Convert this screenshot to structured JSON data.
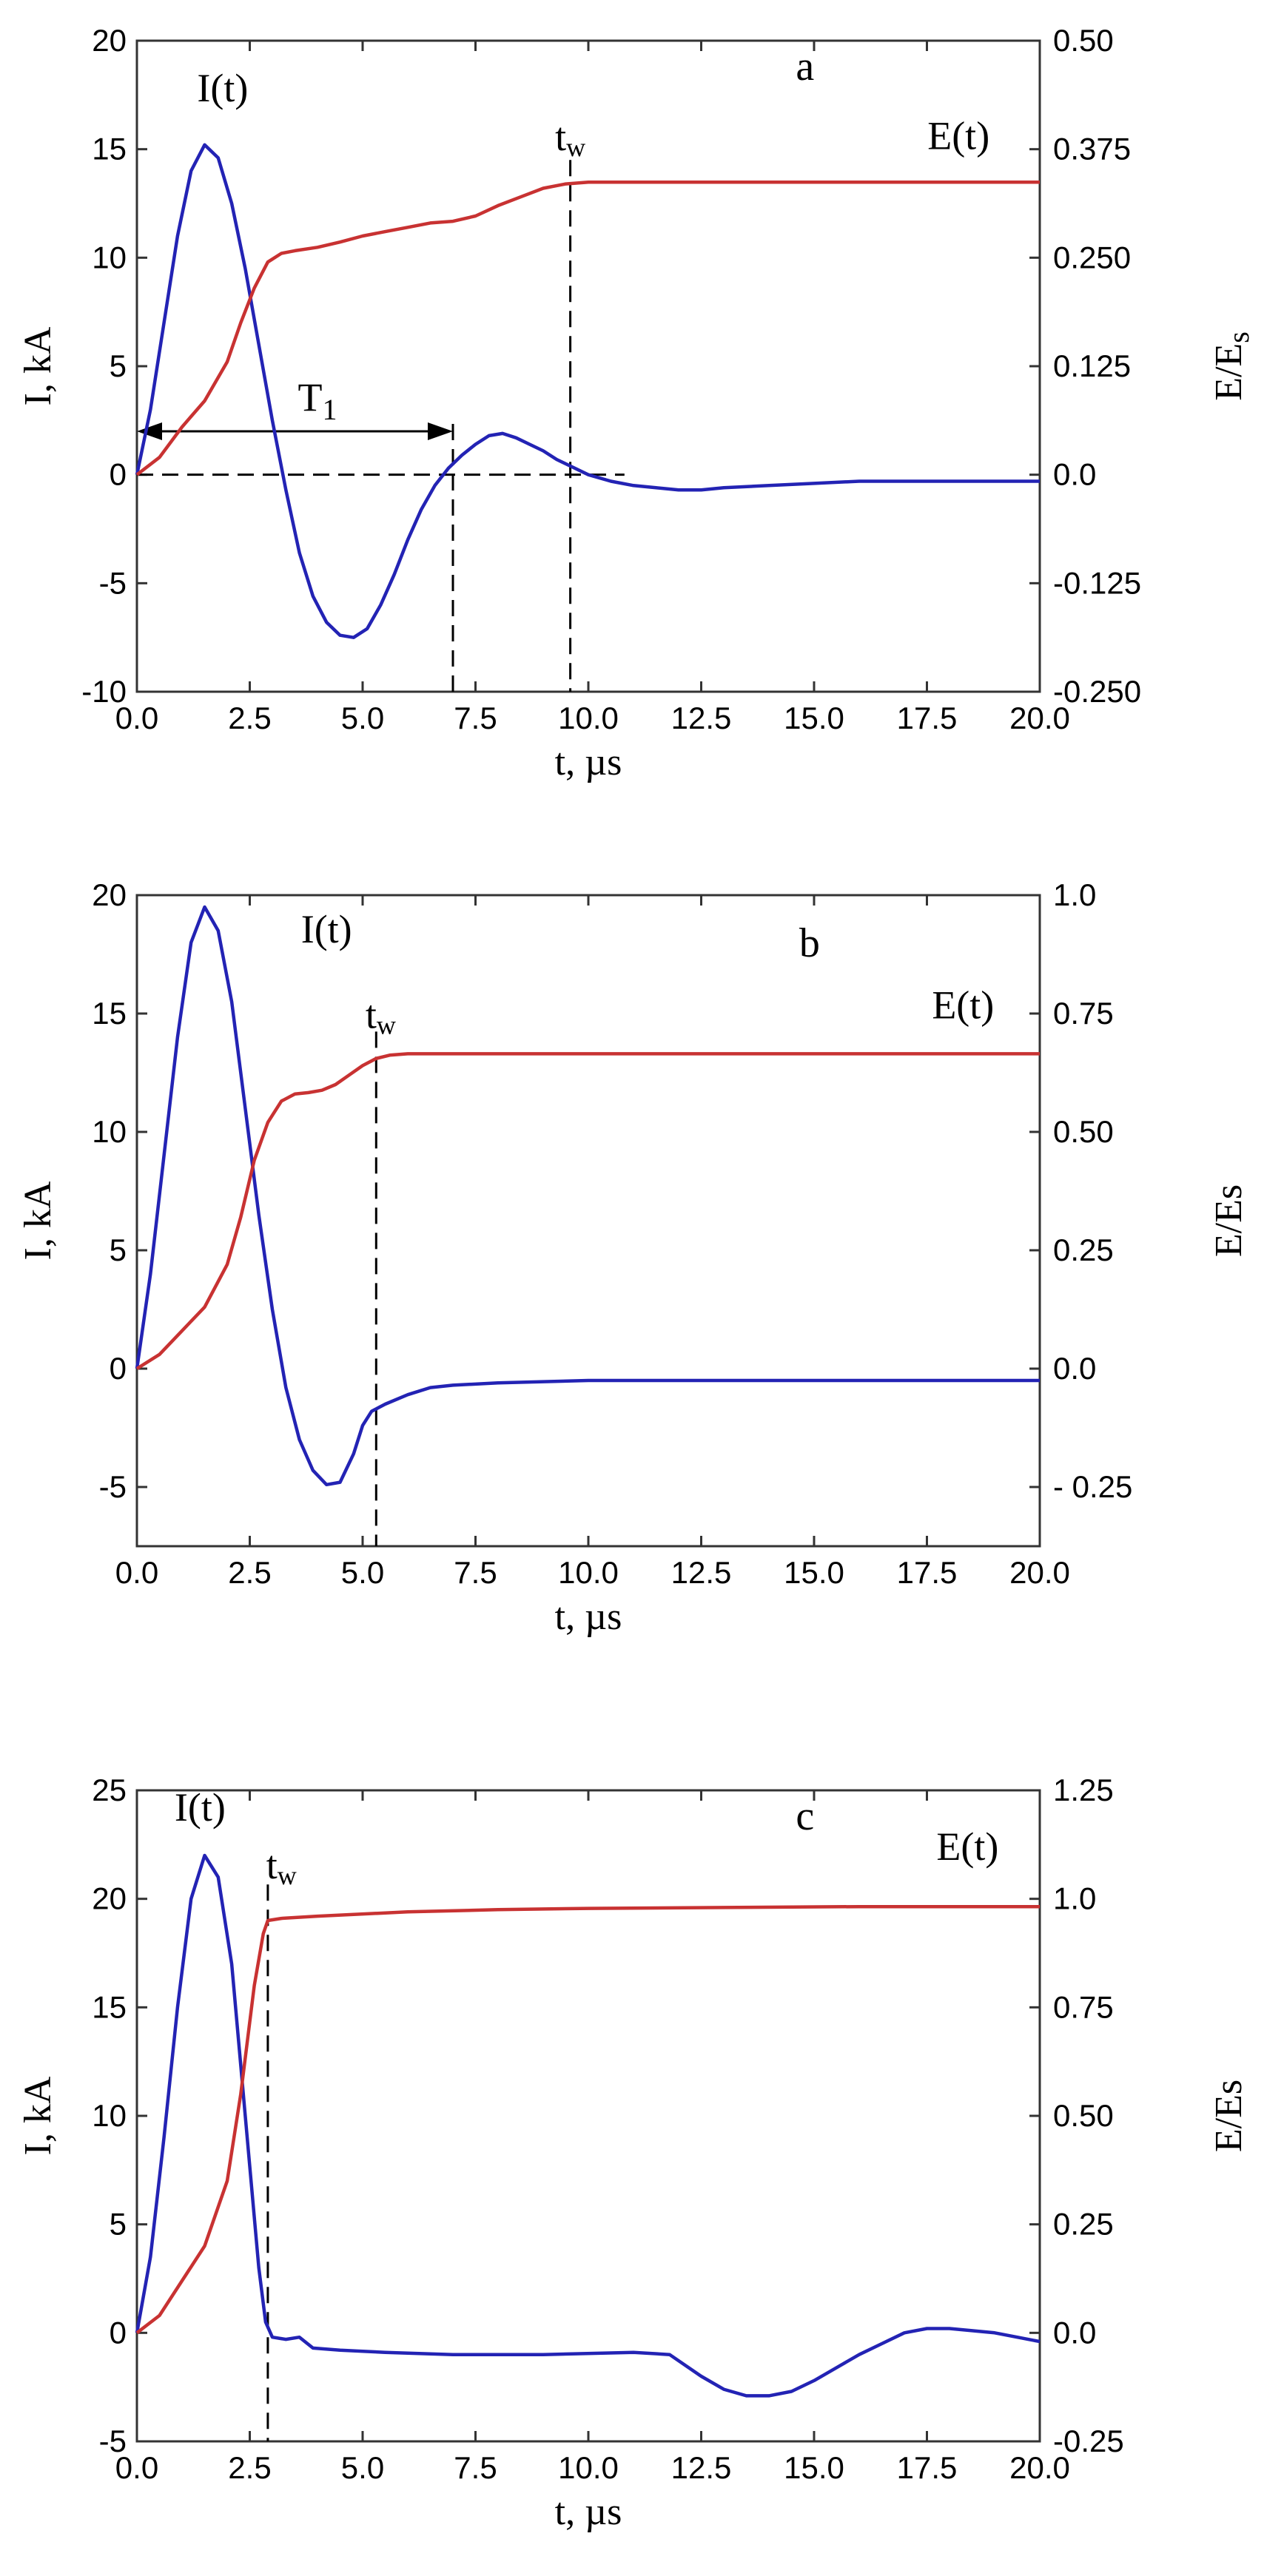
{
  "chart_data": [
    {
      "panel": "a",
      "type": "line",
      "xlabel": "t, µs",
      "ylabel": "I, kA",
      "ylabel_right": "E/E",
      "ylabel_right_sub": "s",
      "xlim": [
        0,
        20
      ],
      "ylim": [
        -10,
        20
      ],
      "ylim_right": [
        -0.25,
        0.5
      ],
      "x_ticks": [
        "0.0",
        "2.5",
        "5.0",
        "7.5",
        "10.0",
        "12.5",
        "15.0",
        "17.5",
        "20.0"
      ],
      "y_ticks": [
        "-10",
        "-5",
        "0",
        "5",
        "10",
        "15",
        "20"
      ],
      "y_ticks_right": [
        "-0.250",
        "-0.125",
        "0.0",
        "0.125",
        "0.250",
        "0.375",
        "0.50"
      ],
      "series": [
        {
          "name": "I(t)",
          "axis": "left",
          "color": "#2323b4",
          "x": [
            0,
            0.3,
            0.6,
            0.9,
            1.2,
            1.5,
            1.8,
            2.1,
            2.4,
            2.7,
            3.0,
            3.3,
            3.6,
            3.9,
            4.2,
            4.5,
            4.8,
            5.1,
            5.4,
            5.7,
            6.0,
            6.3,
            6.6,
            6.9,
            7.2,
            7.5,
            7.8,
            8.1,
            8.4,
            8.7,
            9.0,
            9.3,
            9.6,
            10.0,
            10.5,
            11.0,
            11.5,
            12.0,
            12.5,
            13.0,
            14.0,
            15.0,
            16.0,
            17.0,
            18.0,
            19.0,
            20.0
          ],
          "values": [
            0,
            3,
            7,
            11,
            14,
            15.2,
            14.6,
            12.5,
            9.5,
            6,
            2.5,
            -0.7,
            -3.6,
            -5.6,
            -6.8,
            -7.4,
            -7.5,
            -7.1,
            -6,
            -4.6,
            -3,
            -1.6,
            -0.5,
            0.3,
            0.9,
            1.4,
            1.8,
            1.9,
            1.7,
            1.4,
            1.1,
            0.7,
            0.4,
            0,
            -0.3,
            -0.5,
            -0.6,
            -0.7,
            -0.7,
            -0.6,
            -0.5,
            -0.4,
            -0.3,
            -0.3,
            -0.3,
            -0.3,
            -0.3
          ]
        },
        {
          "name": "E(t)",
          "axis": "right",
          "color": "#c83232",
          "x": [
            0,
            0.5,
            1.0,
            1.5,
            2.0,
            2.3,
            2.6,
            2.9,
            3.2,
            3.5,
            4.0,
            4.5,
            5.0,
            5.5,
            6.0,
            6.5,
            7.0,
            7.5,
            8.0,
            8.5,
            9.0,
            9.5,
            10.0,
            12.0,
            15.0,
            18.0,
            20.0
          ],
          "values": [
            0,
            0.02,
            0.055,
            0.085,
            0.13,
            0.175,
            0.215,
            0.245,
            0.255,
            0.258,
            0.262,
            0.268,
            0.275,
            0.28,
            0.285,
            0.29,
            0.292,
            0.298,
            0.31,
            0.32,
            0.33,
            0.335,
            0.337,
            0.337,
            0.337,
            0.337,
            0.337
          ]
        }
      ],
      "annotations": {
        "series_label_I": "I(t)",
        "series_label_E": "E(t)",
        "tw_label": "t",
        "tw_sub": "W",
        "T1_label": "T",
        "T1_sub": "1",
        "panel_tag": "a"
      },
      "markers": {
        "tw": 9.6,
        "T1_start": 0,
        "T1_end": 7.0,
        "zero_dash_end": 10.8
      }
    },
    {
      "panel": "b",
      "type": "line",
      "xlabel": "t, µs",
      "ylabel": "I, kA",
      "ylabel_right": "E/Es",
      "xlim": [
        0,
        20
      ],
      "ylim": [
        -7.5,
        20
      ],
      "ylim_right": [
        -0.375,
        1.0
      ],
      "x_ticks": [
        "0.0",
        "2.5",
        "5.0",
        "7.5",
        "10.0",
        "12.5",
        "15.0",
        "17.5",
        "20.0"
      ],
      "y_ticks": [
        "-5",
        "0",
        "5",
        "10",
        "15",
        "20"
      ],
      "y_ticks_right": [
        "- 0.25",
        "0.0",
        "0.25",
        "0.50",
        "0.75",
        "1.0"
      ],
      "series": [
        {
          "name": "I(t)",
          "axis": "left",
          "color": "#2323b4",
          "x": [
            0,
            0.3,
            0.6,
            0.9,
            1.2,
            1.5,
            1.8,
            2.1,
            2.4,
            2.7,
            3.0,
            3.3,
            3.6,
            3.9,
            4.2,
            4.5,
            4.8,
            5.0,
            5.2,
            5.5,
            6.0,
            6.5,
            7.0,
            8.0,
            10.0,
            12.0,
            15.0,
            18.0,
            20.0
          ],
          "values": [
            0,
            4,
            9,
            14,
            18,
            19.5,
            18.5,
            15.5,
            11,
            6.5,
            2.5,
            -0.8,
            -3,
            -4.3,
            -4.9,
            -4.8,
            -3.6,
            -2.4,
            -1.8,
            -1.5,
            -1.1,
            -0.8,
            -0.7,
            -0.6,
            -0.5,
            -0.5,
            -0.5,
            -0.5,
            -0.5
          ]
        },
        {
          "name": "E(t)",
          "axis": "right",
          "color": "#c83232",
          "x": [
            0,
            0.5,
            1.0,
            1.5,
            2.0,
            2.3,
            2.6,
            2.9,
            3.2,
            3.5,
            3.8,
            4.1,
            4.4,
            4.7,
            5.0,
            5.3,
            5.6,
            6.0,
            7.0,
            10.0,
            15.0,
            20.0
          ],
          "values": [
            0,
            0.03,
            0.08,
            0.13,
            0.22,
            0.32,
            0.44,
            0.52,
            0.565,
            0.58,
            0.583,
            0.588,
            0.6,
            0.62,
            0.64,
            0.655,
            0.662,
            0.665,
            0.665,
            0.665,
            0.665,
            0.665
          ]
        }
      ],
      "annotations": {
        "series_label_I": "I(t)",
        "series_label_E": "E(t)",
        "tw_label": "t",
        "tw_sub": "W",
        "panel_tag": "b"
      },
      "markers": {
        "tw": 5.3
      }
    },
    {
      "panel": "c",
      "type": "line",
      "xlabel": "t, µs",
      "ylabel": "I, kA",
      "ylabel_right": "E/Es",
      "xlim": [
        0,
        20
      ],
      "ylim": [
        -5,
        25
      ],
      "ylim_right": [
        -0.25,
        1.25
      ],
      "x_ticks": [
        "0.0",
        "2.5",
        "5.0",
        "7.5",
        "10.0",
        "12.5",
        "15.0",
        "17.5",
        "20.0"
      ],
      "y_ticks": [
        "-5",
        "0",
        "5",
        "10",
        "15",
        "20",
        "25"
      ],
      "y_ticks_right": [
        "-0.25",
        "0.0",
        "0.25",
        "0.50",
        "0.75",
        "1.0",
        "1.25"
      ],
      "series": [
        {
          "name": "I(t)",
          "axis": "left",
          "color": "#2323b4",
          "x": [
            0,
            0.3,
            0.6,
            0.9,
            1.2,
            1.5,
            1.8,
            2.1,
            2.4,
            2.7,
            2.85,
            3.0,
            3.3,
            3.6,
            3.9,
            4.5,
            5.5,
            7.0,
            9.0,
            11.0,
            11.8,
            12.5,
            13.0,
            13.5,
            14.0,
            14.5,
            15.0,
            15.5,
            16.0,
            16.5,
            17.0,
            17.5,
            18.0,
            18.5,
            19.0,
            19.5,
            20.0
          ],
          "values": [
            0,
            3.5,
            9,
            15,
            20,
            22,
            21,
            17,
            10,
            3,
            0.5,
            -0.2,
            -0.3,
            -0.2,
            -0.7,
            -0.8,
            -0.9,
            -1.0,
            -1.0,
            -0.9,
            -1.0,
            -2.0,
            -2.6,
            -2.9,
            -2.9,
            -2.7,
            -2.2,
            -1.6,
            -1.0,
            -0.5,
            0.0,
            0.2,
            0.2,
            0.1,
            0.0,
            -0.2,
            -0.4
          ]
        },
        {
          "name": "E(t)",
          "axis": "right",
          "color": "#c83232",
          "x": [
            0,
            0.5,
            1.0,
            1.5,
            2.0,
            2.3,
            2.6,
            2.8,
            2.9,
            3.2,
            4.0,
            6.0,
            8.0,
            10.0,
            13.0,
            16.0,
            20.0
          ],
          "values": [
            0,
            0.04,
            0.12,
            0.2,
            0.35,
            0.55,
            0.8,
            0.92,
            0.95,
            0.955,
            0.96,
            0.97,
            0.975,
            0.978,
            0.98,
            0.982,
            0.982
          ]
        }
      ],
      "annotations": {
        "series_label_I": "I(t)",
        "series_label_E": "E(t)",
        "tw_label": "t",
        "tw_sub": "W",
        "panel_tag": "c"
      },
      "markers": {
        "tw": 2.9
      }
    }
  ]
}
